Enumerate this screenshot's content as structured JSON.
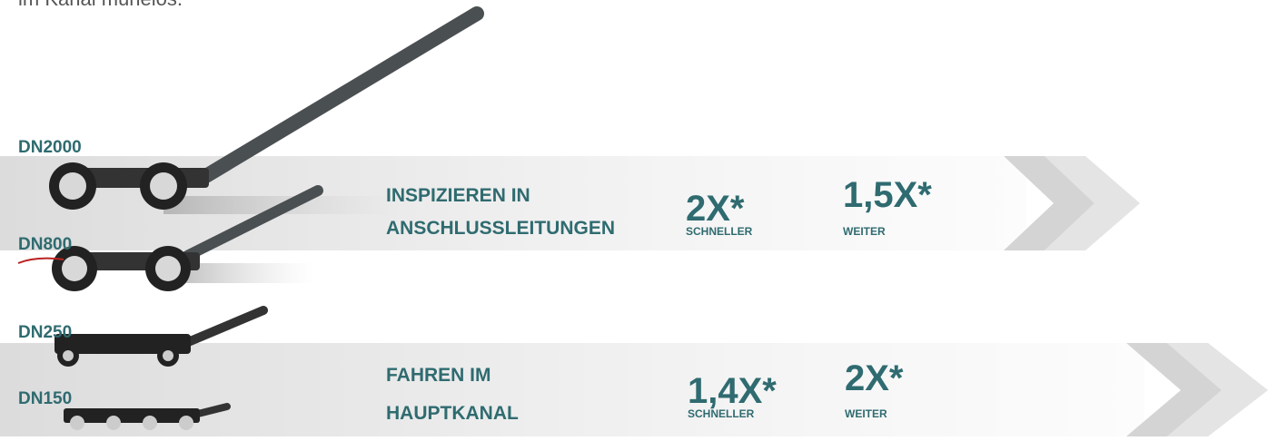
{
  "intro": "im Kanal mühelos.",
  "sizes": [
    "DN2000",
    "DN800",
    "DN250",
    "DN150"
  ],
  "rows": [
    {
      "title": [
        "INSPIZIEREN IN",
        "ANSCHLUSSLEITUNGEN"
      ],
      "stats": [
        {
          "value": "2X*",
          "label": "SCHNELLER"
        },
        {
          "value": "1,5X*",
          "label": "WEITER"
        }
      ]
    },
    {
      "title": [
        "FAHREN IM",
        "HAUPTKANAL"
      ],
      "stats": [
        {
          "value": "1,4X*",
          "label": "SCHNELLER"
        },
        {
          "value": "2X*",
          "label": "WEITER"
        }
      ]
    }
  ]
}
